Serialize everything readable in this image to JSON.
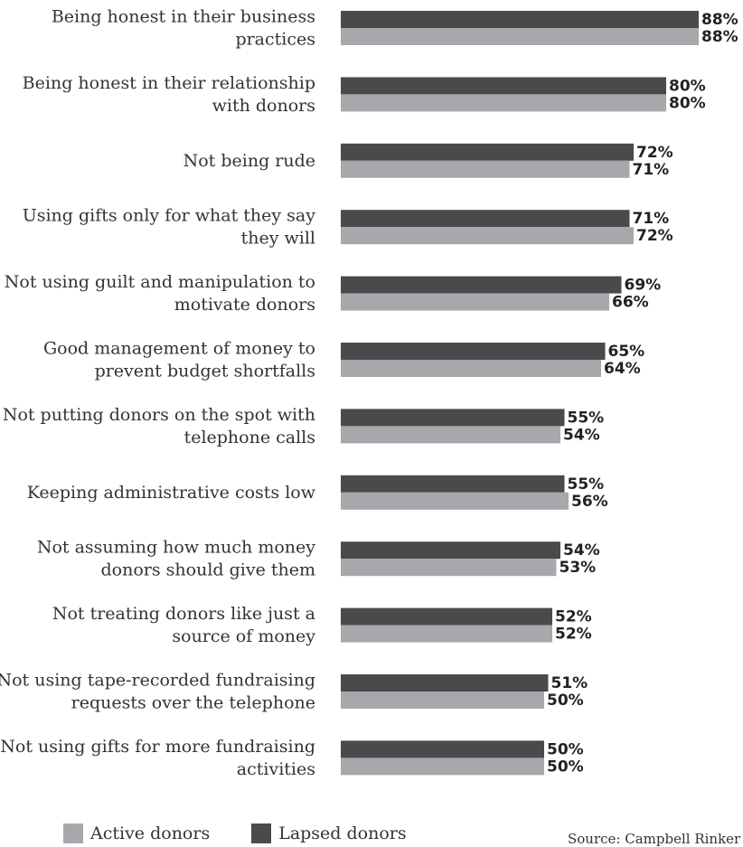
{
  "chart_data": {
    "type": "bar",
    "orientation": "horizontal",
    "categories": [
      [
        "Being honest in their business",
        "practices"
      ],
      [
        "Being honest in their relationship",
        "with donors"
      ],
      [
        "Not being rude"
      ],
      [
        "Using gifts only for what they say",
        "they will"
      ],
      [
        "Not using guilt and manipulation to",
        "motivate donors"
      ],
      [
        "Good management of money to",
        "prevent budget shortfalls"
      ],
      [
        "Not putting donors on the spot with",
        "telephone calls"
      ],
      [
        "Keeping administrative costs low"
      ],
      [
        "Not assuming how much money",
        "donors should give them"
      ],
      [
        "Not treating donors like just a",
        "source of money"
      ],
      [
        "Not using tape-recorded fundraising",
        "requests over the telephone"
      ],
      [
        "Not using gifts for more fundraising",
        "activities"
      ]
    ],
    "series": [
      {
        "name": "Lapsed donors",
        "color": "#4a4a4c",
        "values": [
          88,
          80,
          72,
          71,
          69,
          65,
          55,
          55,
          54,
          52,
          51,
          50
        ],
        "labels": [
          "88%",
          "80%",
          "72%",
          "71%",
          "69%",
          "65%",
          "55%",
          "55%",
          "54%",
          "52%",
          "51%",
          "50%"
        ]
      },
      {
        "name": "Active donors",
        "color": "#a7a8ab",
        "values": [
          88,
          80,
          71,
          72,
          66,
          64,
          54,
          56,
          53,
          52,
          50,
          50
        ],
        "labels": [
          "88%",
          "80%",
          "71%",
          "72%",
          "66%",
          "64%",
          "54%",
          "56%",
          "53%",
          "52%",
          "50%",
          "50%"
        ]
      }
    ],
    "xlim": [
      0,
      100
    ],
    "grid": false,
    "legend_position": "bottom-left"
  },
  "legend": {
    "active_label": "Active donors",
    "lapsed_label": "Lapsed donors"
  },
  "source_text": "Source: Campbell Rinker"
}
